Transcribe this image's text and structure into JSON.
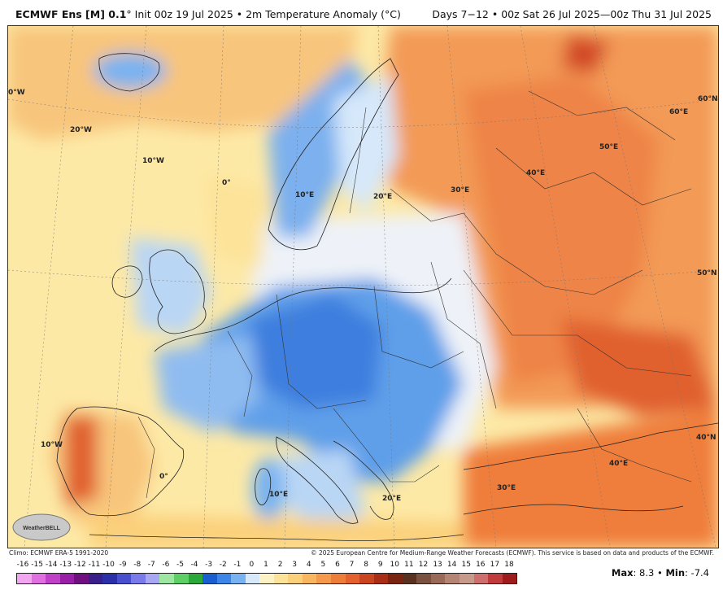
{
  "header": {
    "title_bold": "ECMWF Ens [M] 0.1",
    "title_rest": "° Init 00z 19 Jul 2025 • 2m Temperature Anomaly (°C)",
    "valid": "Days 7−12 • 00z Sat 26 Jul 2025—00z Thu 31 Jul 2025"
  },
  "map": {
    "lon_labels": [
      "0°W",
      "20°W",
      "10°W",
      "0°",
      "10°E",
      "20°E",
      "30°E",
      "40°E",
      "50°E",
      "60°E",
      "60°N",
      "50°N",
      "10°W",
      "0°",
      "10°E",
      "20°E",
      "30°E",
      "40°E",
      "40°N"
    ],
    "colors": {
      "warm": "#f39a57",
      "hot": "#e0612f",
      "cool": "#5f9fe9",
      "cold": "#3d7ede",
      "neutral": "#eef2f8",
      "mild": "#fde9a6"
    }
  },
  "footer": {
    "climo": "Climo: ECMWF ERA-5 1991-2020",
    "copyright": "© 2025 European Centre for Medium-Range Weather Forecasts (ECMWF). This service is based on data and products of the ECMWF.",
    "logo_text": "WeatherBELL"
  },
  "scale": {
    "labels": [
      "-16",
      "-15",
      "-14",
      "-13",
      "-12",
      "-11",
      "-10",
      "-9",
      "-8",
      "-7",
      "-6",
      "-5",
      "-4",
      "-3",
      "-2",
      "-1",
      "0",
      "1",
      "2",
      "3",
      "4",
      "5",
      "6",
      "7",
      "8",
      "9",
      "10",
      "11",
      "12",
      "13",
      "14",
      "15",
      "16",
      "17",
      "18"
    ],
    "colors": [
      "#f2a6f0",
      "#e070e0",
      "#c040c8",
      "#9a1fa8",
      "#6e1080",
      "#3a1f8a",
      "#2b2fa8",
      "#4a4fd0",
      "#7a7ae8",
      "#a8a8f2",
      "#9ee6a2",
      "#5ecf66",
      "#2aa83a",
      "#1a5fd0",
      "#3d85e6",
      "#78b2f0",
      "#d6e8fa",
      "#fdf2c6",
      "#fde39a",
      "#fbd07a",
      "#f9b560",
      "#f59a4c",
      "#ef7d3a",
      "#e2612c",
      "#c8451f",
      "#a82e16",
      "#7a2412",
      "#5a3020",
      "#7a5040",
      "#9a6a58",
      "#b48474",
      "#c79a8c",
      "#cf6e6e",
      "#c03c3c",
      "#a01c1c"
    ]
  },
  "stats": {
    "max_label": "Max",
    "max_value": ": 8.3 • ",
    "min_label": "Min",
    "min_value": ": -7.4"
  }
}
